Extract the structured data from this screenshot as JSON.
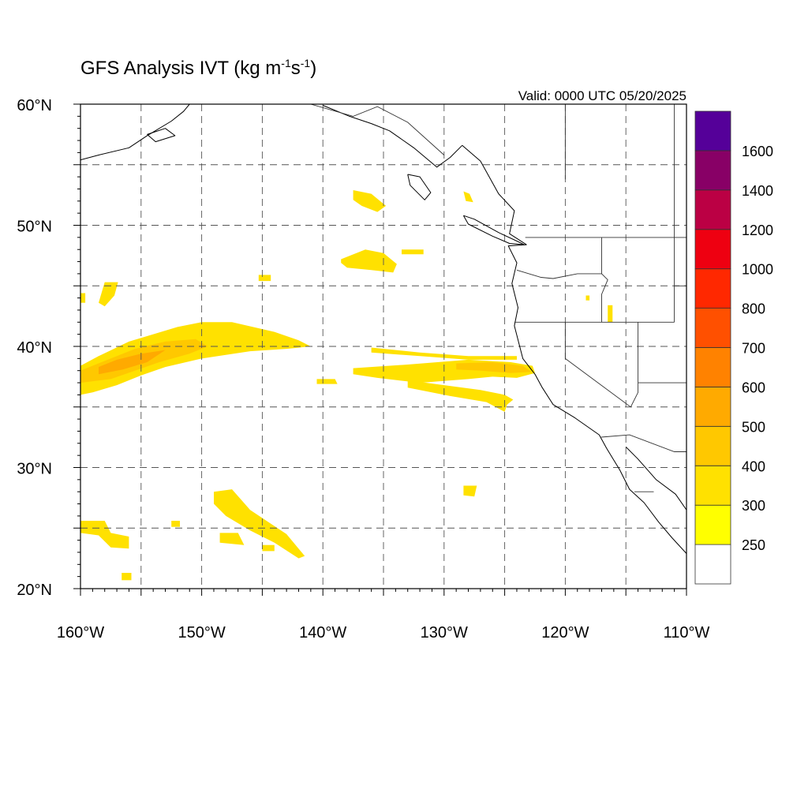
{
  "title": {
    "main": "GFS Analysis IVT (kg m",
    "exp1": "-1",
    "mid": "s",
    "exp2": "-1",
    "close": ")"
  },
  "valid": "Valid: 0000 UTC 05/20/2025",
  "map": {
    "projection": "cylindrical equidistant",
    "lon_range": [
      -160,
      -110
    ],
    "lat_range": [
      20,
      60
    ],
    "grid": "dashed every 5 degrees",
    "lon_ticks": [
      {
        "value": -160,
        "label": "160°W"
      },
      {
        "value": -150,
        "label": "150°W"
      },
      {
        "value": -140,
        "label": "140°W"
      },
      {
        "value": -130,
        "label": "130°W"
      },
      {
        "value": -120,
        "label": "120°W"
      },
      {
        "value": -110,
        "label": "110°W"
      }
    ],
    "lat_ticks": [
      {
        "value": 20,
        "label": "20°N"
      },
      {
        "value": 30,
        "label": "30°N"
      },
      {
        "value": 40,
        "label": "40°N"
      },
      {
        "value": 50,
        "label": "50°N"
      },
      {
        "value": 60,
        "label": "60°N"
      }
    ]
  },
  "colorbar": {
    "orientation": "vertical",
    "placement": "right",
    "levels": [
      250,
      300,
      400,
      500,
      600,
      700,
      800,
      1000,
      1200,
      1400,
      1600
    ],
    "labels": [
      "250",
      "300",
      "400",
      "500",
      "600",
      "700",
      "800",
      "1000",
      "1200",
      "1400",
      "1600"
    ],
    "colors": [
      "#ffffff",
      "#ffff00",
      "#ffe100",
      "#ffc800",
      "#ffaa00",
      "#ff8200",
      "#ff5000",
      "#ff2800",
      "#ee0011",
      "#bb0044",
      "#880066",
      "#550099"
    ]
  },
  "ivt_regions": [
    {
      "id": "large-ar-central-pacific",
      "level": 300,
      "lon": [
        -160.0,
        -158.5,
        -156.0,
        -154.0,
        -152.0,
        -150.0,
        -147.5,
        -144.0,
        -142.0,
        -141.0,
        -143.0,
        -146.0,
        -150.0,
        -153.0,
        -155.0,
        -157.0,
        -159.0,
        -160.0
      ],
      "lat": [
        38.4,
        39.2,
        40.4,
        41.0,
        41.6,
        42.0,
        42.0,
        41.2,
        40.5,
        40.0,
        39.8,
        39.6,
        39.0,
        38.3,
        37.6,
        36.8,
        36.2,
        36.0
      ]
    },
    {
      "id": "large-ar-core",
      "level": 400,
      "lon": [
        -160.0,
        -158.0,
        -155.5,
        -153.0,
        -150.5,
        -149.5,
        -151.0,
        -153.5,
        -155.5,
        -157.5,
        -160.0
      ],
      "lat": [
        38.0,
        38.8,
        39.8,
        40.4,
        40.6,
        40.0,
        39.4,
        38.7,
        38.0,
        37.3,
        37.0
      ]
    },
    {
      "id": "large-ar-inner",
      "level": 500,
      "lon": [
        -158.5,
        -157.0,
        -155.0,
        -153.0,
        -154.5,
        -156.5,
        -158.5
      ],
      "lat": [
        38.3,
        38.9,
        39.4,
        39.7,
        38.7,
        38.1,
        37.7
      ]
    },
    {
      "id": "ar-to-california",
      "level": 300,
      "lon": [
        -137.5,
        -133.0,
        -128.0,
        -124.5,
        -122.7,
        -122.5,
        -124.0,
        -126.0,
        -128.0,
        -132.0,
        -135.5,
        -137.5
      ],
      "lat": [
        38.2,
        38.5,
        38.9,
        38.7,
        38.4,
        37.8,
        37.4,
        37.5,
        37.3,
        37.0,
        37.4,
        37.7
      ]
    },
    {
      "id": "ar-southern-branch",
      "level": 300,
      "lon": [
        -133.0,
        -130.0,
        -127.0,
        -125.0,
        -124.3,
        -124.8,
        -125.0,
        -126.5,
        -129.5,
        -133.0
      ],
      "lat": [
        37.2,
        36.8,
        36.4,
        36.0,
        35.6,
        35.2,
        34.6,
        35.4,
        35.9,
        36.6
      ]
    },
    {
      "id": "ar-to-california-inner",
      "level": 400,
      "lon": [
        -129.0,
        -126.0,
        -123.5,
        -122.8,
        -124.5,
        -127.0,
        -129.0
      ],
      "lat": [
        38.6,
        38.7,
        38.4,
        37.9,
        37.8,
        38.0,
        38.1
      ]
    },
    {
      "id": "ar-tail-west",
      "level": 300,
      "lon": [
        -140.5,
        -139.0,
        -138.8,
        -140.5
      ],
      "lat": [
        37.3,
        37.3,
        36.9,
        36.9
      ]
    },
    {
      "id": "ar-thin-north",
      "level": 300,
      "lon": [
        -136.0,
        -132.0,
        -128.0,
        -124.0,
        -124.0,
        -128.0,
        -132.0,
        -136.0
      ],
      "lat": [
        39.9,
        39.5,
        39.2,
        39.2,
        38.9,
        38.9,
        39.2,
        39.5
      ]
    },
    {
      "id": "gulf-patch-north",
      "level": 300,
      "lon": [
        -137.5,
        -136.0,
        -134.8,
        -135.5,
        -136.8,
        -137.5
      ],
      "lat": [
        52.9,
        52.6,
        51.6,
        51.1,
        51.6,
        52.1
      ]
    },
    {
      "id": "gulf-patch-mid",
      "level": 300,
      "lon": [
        -138.5,
        -136.5,
        -135.0,
        -133.9,
        -134.2,
        -136.0,
        -138.0,
        -138.5
      ],
      "lat": [
        47.2,
        48.0,
        47.7,
        46.8,
        46.1,
        46.3,
        46.5,
        46.9
      ]
    },
    {
      "id": "gulf-patch-small",
      "level": 300,
      "lon": [
        -133.5,
        -131.7,
        -131.7,
        -133.5
      ],
      "lat": [
        48.0,
        48.0,
        47.6,
        47.6
      ]
    },
    {
      "id": "patch-dot-145",
      "level": 300,
      "lon": [
        -145.3,
        -144.3,
        -144.3,
        -145.3
      ],
      "lat": [
        45.9,
        45.9,
        45.4,
        45.4
      ]
    },
    {
      "id": "patch-bc-coast",
      "level": 300,
      "lon": [
        -128.4,
        -127.9,
        -127.6,
        -128.2
      ],
      "lat": [
        52.8,
        52.6,
        51.9,
        52.0
      ]
    },
    {
      "id": "patch-hawaii-north",
      "level": 300,
      "lon": [
        -158.0,
        -156.9,
        -157.2,
        -158.0,
        -158.5
      ],
      "lat": [
        45.3,
        45.3,
        44.2,
        43.3,
        43.6
      ]
    },
    {
      "id": "patch-west-edge",
      "level": 300,
      "lon": [
        -160.0,
        -159.6,
        -159.6,
        -160.0
      ],
      "lat": [
        44.4,
        44.4,
        43.6,
        43.6
      ]
    },
    {
      "id": "patch-subtropical-main",
      "level": 300,
      "lon": [
        -149.0,
        -147.5,
        -146.0,
        -144.5,
        -143.0,
        -141.5,
        -142.0,
        -144.0,
        -146.0,
        -148.0,
        -149.0
      ],
      "lat": [
        28.0,
        28.2,
        26.5,
        25.5,
        24.5,
        22.7,
        22.5,
        23.8,
        24.8,
        26.0,
        27.0
      ]
    },
    {
      "id": "patch-subtropical-small",
      "level": 300,
      "lon": [
        -148.5,
        -147.0,
        -146.5,
        -148.5
      ],
      "lat": [
        24.6,
        24.6,
        23.6,
        23.8
      ]
    },
    {
      "id": "patch-subtropical-dots",
      "level": 300,
      "lon": [
        -145.0,
        -144.0,
        -144.0,
        -145.0
      ],
      "lat": [
        23.6,
        23.6,
        23.1,
        23.1
      ]
    },
    {
      "id": "patch-east-128",
      "level": 300,
      "lon": [
        -128.4,
        -127.3,
        -127.5,
        -128.4
      ],
      "lat": [
        28.5,
        28.5,
        27.6,
        27.7
      ]
    },
    {
      "id": "patch-hawaii",
      "level": 300,
      "lon": [
        -160.0,
        -158.0,
        -157.5,
        -156.0,
        -156.0,
        -157.5,
        -158.5,
        -160.0
      ],
      "lat": [
        25.6,
        25.6,
        24.6,
        24.3,
        23.3,
        23.4,
        24.4,
        24.6
      ]
    },
    {
      "id": "patch-hawaii-south",
      "level": 300,
      "lon": [
        -156.6,
        -155.8,
        -155.8,
        -156.6
      ],
      "lat": [
        21.3,
        21.3,
        20.7,
        20.7
      ]
    },
    {
      "id": "patch-152",
      "level": 300,
      "lon": [
        -152.5,
        -151.8,
        -151.8,
        -152.5
      ],
      "lat": [
        25.6,
        25.6,
        25.1,
        25.1
      ]
    },
    {
      "id": "patch-idaho",
      "level": 300,
      "lon": [
        -116.5,
        -116.1,
        -116.1,
        -116.5
      ],
      "lat": [
        43.4,
        43.4,
        42.0,
        42.0
      ]
    },
    {
      "id": "patch-oregon-dot",
      "level": 300,
      "lon": [
        -118.3,
        -118.0,
        -118.0,
        -118.3
      ],
      "lat": [
        44.2,
        44.2,
        43.8,
        43.8
      ]
    }
  ],
  "coastlines": [
    {
      "id": "north-america-west-coast",
      "lon": [
        -128.5,
        -127.0,
        -125.5,
        -124.2,
        -124.6,
        -123.2,
        -124.7,
        -124.0,
        -124.4,
        -123.9,
        -124.2,
        -123.5,
        -122.5,
        -121.9,
        -121.0,
        -119.2,
        -117.2,
        -116.6,
        -115.5,
        -114.7,
        -113.5,
        -112.3,
        -111.2,
        -110.0
      ],
      "lat": [
        56.6,
        55.3,
        52.6,
        51.2,
        49.3,
        48.4,
        48.3,
        46.9,
        45.2,
        43.2,
        41.7,
        39.0,
        37.7,
        36.6,
        35.2,
        34.1,
        32.7,
        31.6,
        29.8,
        28.2,
        27.1,
        25.5,
        24.2,
        22.9
      ]
    },
    {
      "id": "southeast-alaska",
      "lon": [
        -140.0,
        -137.8,
        -136.0,
        -134.5,
        -132.5,
        -130.6,
        -129.5,
        -128.5
      ],
      "lat": [
        59.9,
        59.0,
        58.4,
        57.8,
        56.4,
        54.8,
        55.6,
        56.6
      ]
    },
    {
      "id": "alaska-peninsula",
      "lon": [
        -160.0,
        -158.5,
        -156.0,
        -154.5,
        -152.5,
        -151.5,
        -151.0
      ],
      "lat": [
        55.4,
        55.8,
        56.4,
        57.4,
        58.6,
        59.4,
        60.0
      ]
    },
    {
      "id": "vancouver-island",
      "lon": [
        -128.4,
        -127.5,
        -125.5,
        -124.0,
        -123.4,
        -124.6,
        -126.0,
        -128.0,
        -128.4
      ],
      "lat": [
        50.8,
        50.5,
        49.4,
        48.7,
        48.4,
        48.5,
        49.1,
        50.1,
        50.8
      ]
    },
    {
      "id": "haida-gwaii",
      "lon": [
        -133.0,
        -132.0,
        -131.1,
        -131.6,
        -132.8,
        -133.0
      ],
      "lat": [
        54.2,
        54.0,
        52.7,
        52.1,
        53.3,
        54.2
      ]
    },
    {
      "id": "gulf-of-california-east",
      "lon": [
        -115.0,
        -114.0,
        -112.5,
        -110.9,
        -110.0
      ],
      "lat": [
        31.7,
        30.7,
        29.0,
        27.8,
        26.5
      ]
    },
    {
      "id": "kodiak",
      "lon": [
        -154.5,
        -153.0,
        -152.2,
        -153.8,
        -154.5
      ],
      "lat": [
        57.5,
        58.0,
        57.4,
        56.9,
        57.5
      ]
    }
  ],
  "borders": [
    {
      "id": "us-canada",
      "lon": [
        -123.3,
        -114.0,
        -110.0
      ],
      "lat": [
        49.0,
        49.0,
        49.0
      ]
    },
    {
      "id": "or-ca-nv-id",
      "lon": [
        -124.2,
        -111.0
      ],
      "lat": [
        42.0,
        42.0
      ]
    },
    {
      "id": "wa-or",
      "lon": [
        -124.0,
        -122.0,
        -121.0,
        -119.0,
        -117.0
      ],
      "lat": [
        46.3,
        45.7,
        45.6,
        46.0,
        46.0
      ]
    },
    {
      "id": "wa-id-or-id",
      "lon": [
        -117.0,
        -117.0,
        -116.5,
        -117.0,
        -117.0
      ],
      "lat": [
        49.0,
        46.0,
        45.5,
        44.3,
        42.0
      ]
    },
    {
      "id": "ca-nv",
      "lon": [
        -120.0,
        -120.0,
        -114.6
      ],
      "lat": [
        42.0,
        39.0,
        35.0
      ]
    },
    {
      "id": "nv-az",
      "lon": [
        -114.6,
        -114.0,
        -114.0
      ],
      "lat": [
        35.0,
        36.2,
        42.0
      ]
    },
    {
      "id": "ut-east",
      "lon": [
        -111.0,
        -111.0,
        -110.0
      ],
      "lat": [
        42.0,
        45.0,
        45.0
      ]
    },
    {
      "id": "az-ut",
      "lon": [
        -114.0,
        -110.0
      ],
      "lat": [
        37.0,
        37.0
      ]
    },
    {
      "id": "us-mexico",
      "lon": [
        -117.1,
        -114.7,
        -111.0,
        -110.0
      ],
      "lat": [
        32.5,
        32.7,
        31.3,
        31.3
      ]
    },
    {
      "id": "bc-alaska",
      "lon": [
        -141.0,
        -137.5,
        -135.5,
        -133.0,
        -130.0
      ],
      "lat": [
        60.0,
        59.0,
        59.8,
        58.5,
        55.8
      ]
    },
    {
      "id": "baja-state-line",
      "lon": [
        -114.3,
        -112.7
      ],
      "lat": [
        28.0,
        28.0
      ]
    },
    {
      "id": "wyoming-west",
      "lon": [
        -111.0,
        -111.0
      ],
      "lat": [
        45.0,
        60.0
      ]
    },
    {
      "id": "bc-alberta",
      "lon": [
        -120.0,
        -120.0
      ],
      "lat": [
        60.0,
        53.8
      ]
    }
  ]
}
